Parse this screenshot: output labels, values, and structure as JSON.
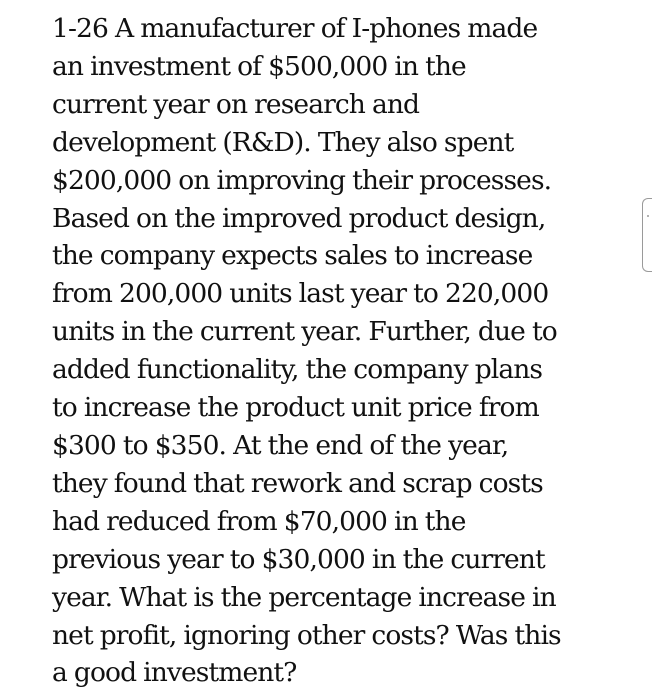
{
  "problem": {
    "lines": [
      "1-26 A manufacturer of I-phones made",
      "an investment of $500,000 in the",
      "current year on research and",
      "development (R&D). They also spent",
      "$200,000 on improving their processes.",
      "Based on the improved product design,",
      "the company expects sales to increase",
      "from 200,000 units last year to 220,000",
      "units in the current year. Further, due to",
      "added functionality, the company plans",
      "to increase the product unit price from",
      "$300 to $350. At the end of the year,",
      "they found that rework and scrap costs",
      "had reduced from $70,000 in the",
      "previous year to $30,000 in the current",
      "year. What is the percentage increase in",
      "net profit, ignoring other costs? Was this",
      "a good investment?"
    ]
  },
  "colors": {
    "text": "#111111",
    "background": "#ffffff",
    "bracket": "#9a9a9a"
  }
}
